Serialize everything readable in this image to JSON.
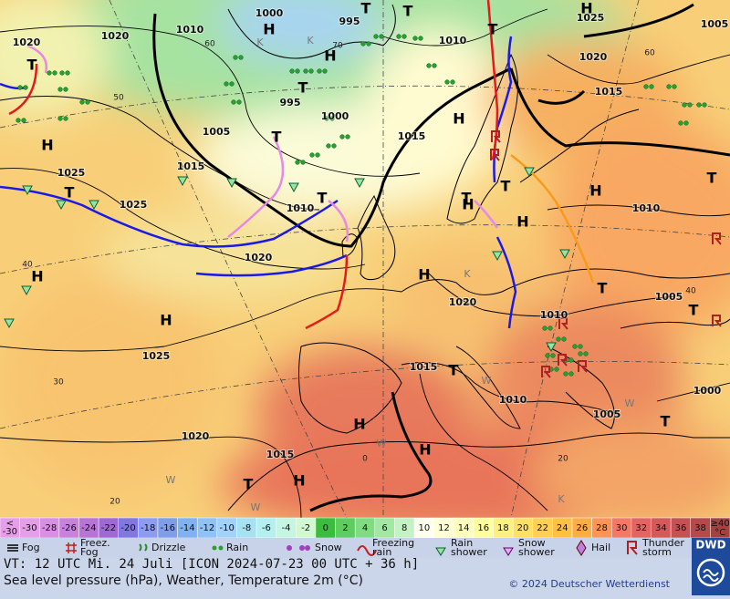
{
  "map": {
    "pressure_labels": [
      "1000",
      "1020",
      "1010",
      "995",
      "1010",
      "1025",
      "1005",
      "1020",
      "1020",
      "1015",
      "995",
      "1000",
      "1005",
      "1015",
      "1015",
      "1025",
      "1025",
      "1010",
      "1010",
      "1020",
      "1020",
      "1005",
      "1010",
      "1025",
      "1015",
      "1010",
      "1005",
      "1000",
      "1020",
      "1015"
    ],
    "systems": [
      "H",
      "H",
      "H",
      "H",
      "H",
      "H",
      "H",
      "H",
      "H",
      "H",
      "H",
      "H",
      "H",
      "H",
      "T",
      "T",
      "T",
      "T",
      "T",
      "T",
      "T",
      "T",
      "T",
      "T",
      "T",
      "T",
      "T",
      "T",
      "T",
      "T"
    ],
    "grid_labels": [
      "60",
      "60",
      "50",
      "40",
      "40",
      "30",
      "20",
      "20",
      "70",
      "0"
    ],
    "markers": [
      "K",
      "K",
      "K",
      "K",
      "W",
      "W",
      "W",
      "W",
      "W"
    ]
  },
  "scale": {
    "below": "<",
    "below_value": "-30",
    "cells": [
      {
        "label": "-30",
        "color": "#e49fe8"
      },
      {
        "label": "-28",
        "color": "#d890e2"
      },
      {
        "label": "-26",
        "color": "#c882dc"
      },
      {
        "label": "-24",
        "color": "#b674d6"
      },
      {
        "label": "-22",
        "color": "#a068d2"
      },
      {
        "label": "-20",
        "color": "#8078e0"
      },
      {
        "label": "-18",
        "color": "#8c9cf0"
      },
      {
        "label": "-16",
        "color": "#7e9fe8"
      },
      {
        "label": "-14",
        "color": "#80b2f2"
      },
      {
        "label": "-12",
        "color": "#90c2f6"
      },
      {
        "label": "-10",
        "color": "#a2d2f8"
      },
      {
        "label": "-8",
        "color": "#a6e2f2"
      },
      {
        "label": "-6",
        "color": "#b4f0f0"
      },
      {
        "label": "-4",
        "color": "#c4f6e2"
      },
      {
        "label": "-2",
        "color": "#d2f8d2"
      },
      {
        "label": "0",
        "color": "#3cbc3c"
      },
      {
        "label": "2",
        "color": "#5ecc5e"
      },
      {
        "label": "4",
        "color": "#80dc80"
      },
      {
        "label": "6",
        "color": "#a2e8a2"
      },
      {
        "label": "8",
        "color": "#c4f2c4"
      },
      {
        "label": "10",
        "color": "#fffff0"
      },
      {
        "label": "12",
        "color": "#ffffd8"
      },
      {
        "label": "14",
        "color": "#ffffbc"
      },
      {
        "label": "16",
        "color": "#ffff9c"
      },
      {
        "label": "18",
        "color": "#fff080"
      },
      {
        "label": "20",
        "color": "#ffe066"
      },
      {
        "label": "22",
        "color": "#ffd054"
      },
      {
        "label": "24",
        "color": "#ffc044"
      },
      {
        "label": "26",
        "color": "#ffac44"
      },
      {
        "label": "28",
        "color": "#ff9454"
      },
      {
        "label": "30",
        "color": "#f47862"
      },
      {
        "label": "32",
        "color": "#e46462"
      },
      {
        "label": "34",
        "color": "#d45a5a"
      },
      {
        "label": "36",
        "color": "#c45252"
      },
      {
        "label": "38",
        "color": "#b44a4a"
      }
    ],
    "above": "≥40",
    "above_color": "#a44242",
    "unit": "°C"
  },
  "legend": [
    "Fog",
    "Freez. Fog",
    "Drizzle",
    "Rain",
    "Snow",
    "Freezing rain",
    "Rain shower",
    "Snow shower",
    "Hail",
    "Thunder storm"
  ],
  "logo": "DWD",
  "footer": {
    "valid_time": "VT: 12 UTC Mi.  24 Juli [ICON 2024-07-23  00 UTC + 36 h]",
    "description": "Sea level pressure (hPa), Weather, Temperature 2m (°C)",
    "copyright": "© 2024 Deutscher Wetterdienst"
  }
}
